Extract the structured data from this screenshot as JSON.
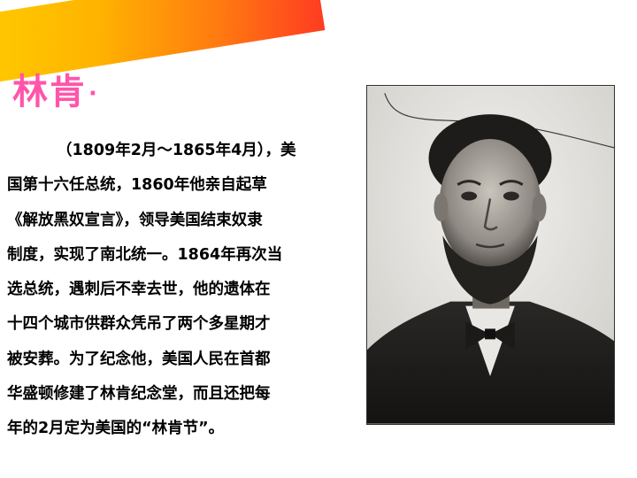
{
  "slide": {
    "title": "林肯",
    "title_dot": "·",
    "paragraph_lines": [
      "（1809年2月～1865年4月），美",
      "国第十六任总统，1860年他亲自起草",
      "《解放黑奴宣言》，领导美国结束奴隶",
      "制度，实现了南北统一。1864年再次当",
      "选总统，遇刺后不幸去世，他的遗体在",
      "十四个城市供群众凭吊了两个多星期才",
      "被安葬。为了纪念他，美国人民在首都",
      "华盛顿修建了林肯纪念堂，而且还把每",
      "年的2月定为美国的“林肯节”。"
    ]
  },
  "colors": {
    "title": "#ff55aa",
    "banner_start": "#ffcc00",
    "banner_end": "#ff3b22",
    "text": "#000000"
  }
}
